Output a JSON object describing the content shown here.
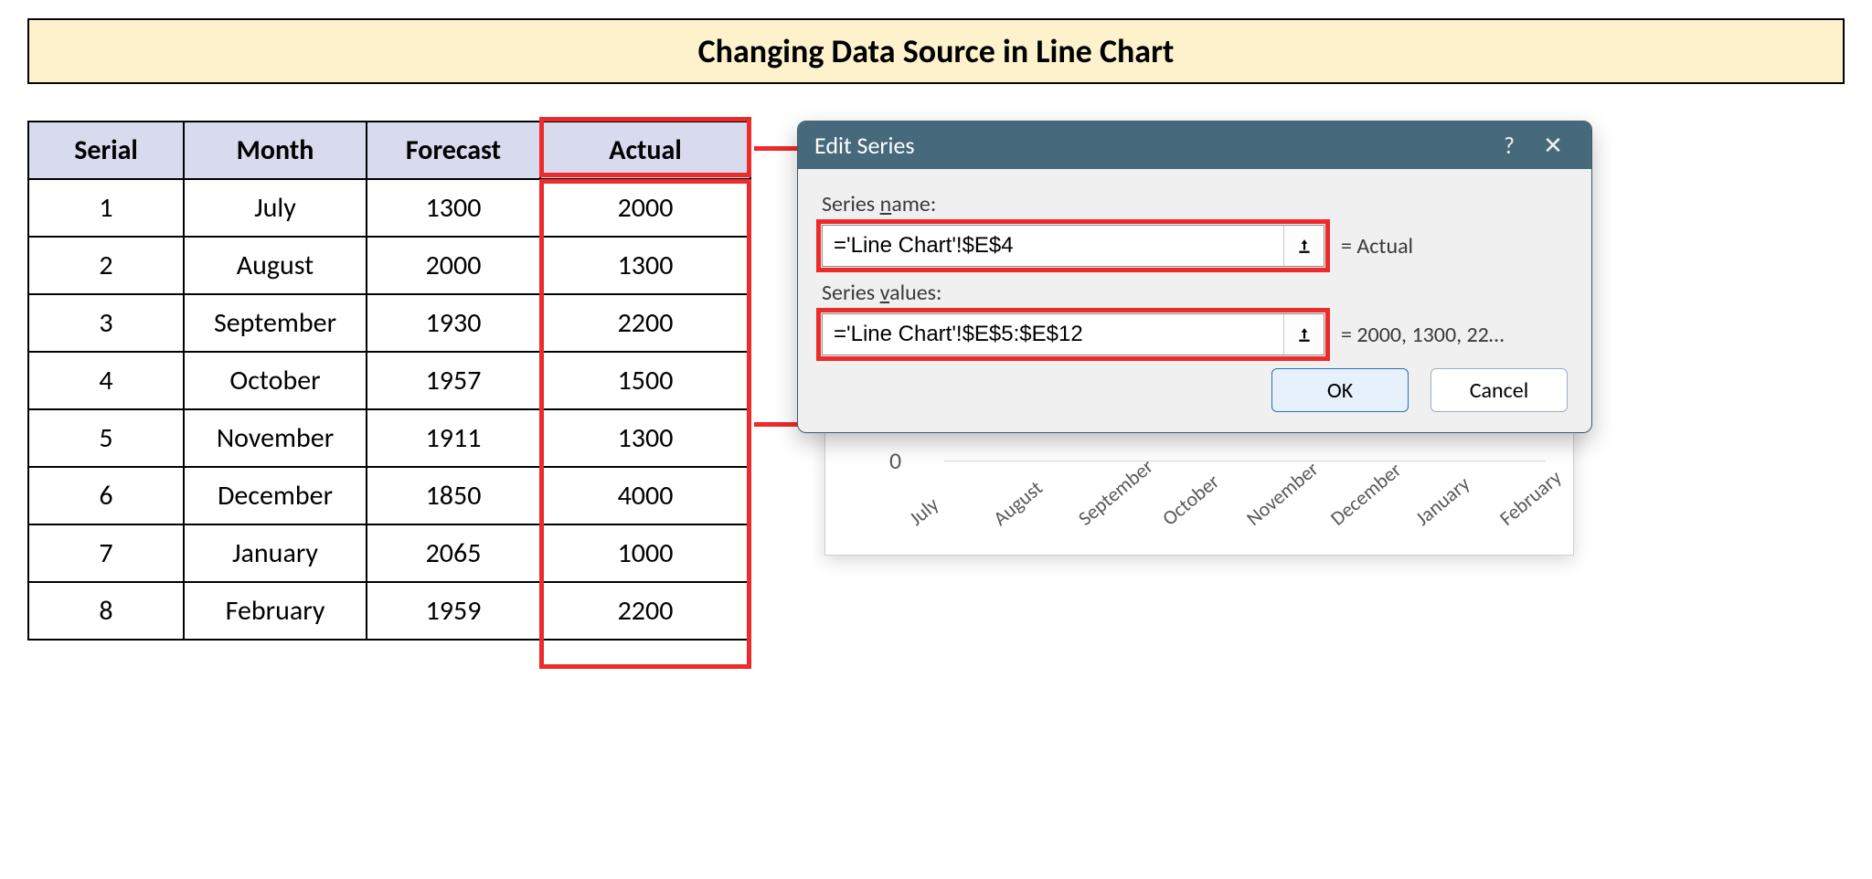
{
  "banner": {
    "title": "Changing Data Source in Line Chart"
  },
  "table": {
    "headers": {
      "serial": "Serial",
      "month": "Month",
      "forecast": "Forecast",
      "actual": "Actual"
    },
    "rows": [
      {
        "serial": "1",
        "month": "July",
        "forecast": "1300",
        "actual": "2000"
      },
      {
        "serial": "2",
        "month": "August",
        "forecast": "2000",
        "actual": "1300"
      },
      {
        "serial": "3",
        "month": "September",
        "forecast": "1930",
        "actual": "2200"
      },
      {
        "serial": "4",
        "month": "October",
        "forecast": "1957",
        "actual": "1500"
      },
      {
        "serial": "5",
        "month": "November",
        "forecast": "1911",
        "actual": "1300"
      },
      {
        "serial": "6",
        "month": "December",
        "forecast": "1850",
        "actual": "4000"
      },
      {
        "serial": "7",
        "month": "January",
        "forecast": "2065",
        "actual": "1000"
      },
      {
        "serial": "8",
        "month": "February",
        "forecast": "1959",
        "actual": "2200"
      }
    ],
    "highlight_color": "#ec2b2a",
    "header_bg": "#d8dbee"
  },
  "dialog": {
    "title": "Edit Series",
    "help_glyph": "?",
    "close_glyph": "✕",
    "series_name_label_pre": "Series ",
    "series_name_label_ul": "n",
    "series_name_label_post": "ame:",
    "series_name_value": "='Line Chart'!$E$4",
    "series_name_resolved": "=  Actual",
    "series_values_label_pre": "Series ",
    "series_values_label_ul": "v",
    "series_values_label_post": "alues:",
    "series_values_value": "='Line Chart'!$E$5:$E$12",
    "series_values_resolved": "=  2000, 1300, 22…",
    "ok_label": "OK",
    "cancel_label": "Cancel",
    "titlebar_bg": "#46697b",
    "body_bg": "#f0f0f0"
  },
  "chart": {
    "zero_label": "0",
    "x_labels": [
      "July",
      "August",
      "September",
      "October",
      "November",
      "December",
      "January",
      "February"
    ],
    "label_rotation_deg": -40,
    "label_color": "#595959",
    "gridline_color": "#d9d9d9"
  }
}
